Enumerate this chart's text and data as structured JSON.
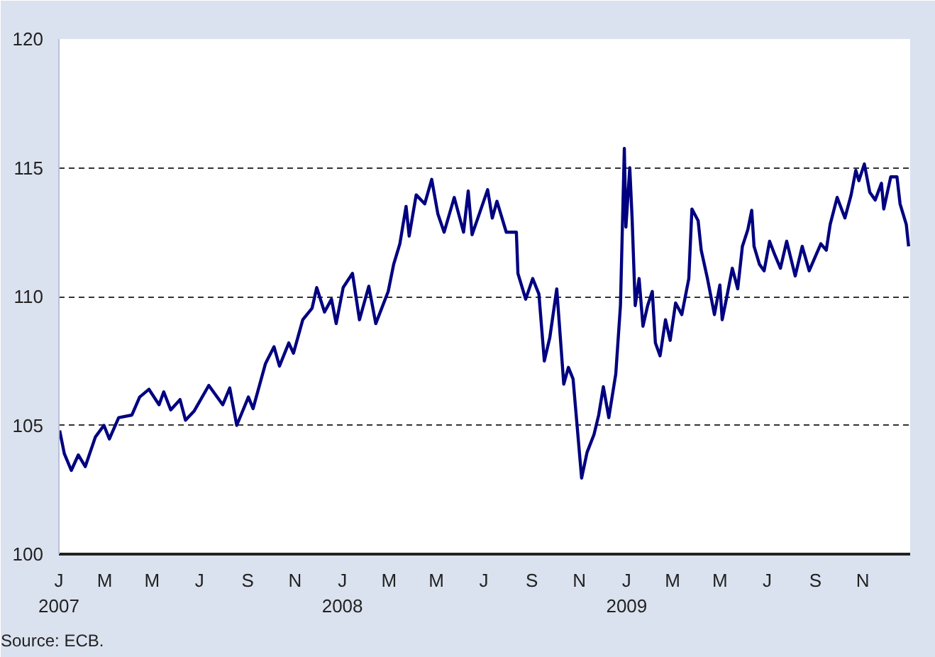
{
  "chart_data": {
    "type": "line",
    "color": "#000080",
    "line_style": "solid",
    "marker": "none",
    "grid": "y",
    "x": [
      "2007-01-02",
      "2007-01-08",
      "2007-01-17",
      "2007-01-26",
      "2007-02-04",
      "2007-02-17",
      "2007-02-28",
      "2007-03-07",
      "2007-03-19",
      "2007-04-05",
      "2007-04-15",
      "2007-04-27",
      "2007-05-10",
      "2007-05-16",
      "2007-05-25",
      "2007-06-06",
      "2007-06-13",
      "2007-06-24",
      "2007-07-13",
      "2007-07-31",
      "2007-08-09",
      "2007-08-18",
      "2007-09-02",
      "2007-09-08",
      "2007-09-24",
      "2007-10-05",
      "2007-10-12",
      "2007-10-24",
      "2007-10-30",
      "2007-11-11",
      "2007-11-23",
      "2007-11-29",
      "2007-12-09",
      "2007-12-18",
      "2007-12-24",
      "2008-01-02",
      "2008-01-14",
      "2008-01-23",
      "2008-02-04",
      "2008-02-13",
      "2008-02-29",
      "2008-03-07",
      "2008-03-15",
      "2008-03-23",
      "2008-03-27",
      "2008-04-05",
      "2008-04-16",
      "2008-04-25",
      "2008-05-03",
      "2008-05-11",
      "2008-05-24",
      "2008-06-05",
      "2008-06-11",
      "2008-06-16",
      "2008-07-06",
      "2008-07-12",
      "2008-07-18",
      "2008-07-30",
      "2008-08-12",
      "2008-08-14",
      "2008-08-24",
      "2008-09-02",
      "2008-09-10",
      "2008-09-17",
      "2008-09-24",
      "2008-10-03",
      "2008-10-12",
      "2008-10-18",
      "2008-10-24",
      "2008-11-04",
      "2008-11-11",
      "2008-11-20",
      "2008-11-26",
      "2008-12-02",
      "2008-12-09",
      "2008-12-18",
      "2008-12-24",
      "2008-12-29",
      "2008-12-31",
      "2009-01-05",
      "2009-01-08",
      "2009-01-12",
      "2009-01-17",
      "2009-01-22",
      "2009-01-28",
      "2009-02-03",
      "2009-02-07",
      "2009-02-13",
      "2009-02-20",
      "2009-02-26",
      "2009-03-05",
      "2009-03-13",
      "2009-03-22",
      "2009-03-26",
      "2009-04-03",
      "2009-04-07",
      "2009-04-15",
      "2009-04-24",
      "2009-05-01",
      "2009-05-04",
      "2009-05-10",
      "2009-05-17",
      "2009-05-24",
      "2009-05-30",
      "2009-06-06",
      "2009-06-11",
      "2009-06-14",
      "2009-06-21",
      "2009-06-27",
      "2009-07-04",
      "2009-07-11",
      "2009-07-18",
      "2009-07-26",
      "2009-08-06",
      "2009-08-15",
      "2009-08-24",
      "2009-09-08",
      "2009-09-15",
      "2009-09-20",
      "2009-09-29",
      "2009-10-09",
      "2009-10-17",
      "2009-10-23",
      "2009-10-27",
      "2009-11-03",
      "2009-11-10",
      "2009-11-17",
      "2009-11-25",
      "2009-11-28",
      "2009-12-07",
      "2009-12-15",
      "2009-12-19",
      "2009-12-27",
      "2009-12-30"
    ],
    "values": [
      104.8,
      103.9,
      103.25,
      103.85,
      103.4,
      104.55,
      105.0,
      104.47,
      105.3,
      105.4,
      106.1,
      106.4,
      105.8,
      106.3,
      105.6,
      106.0,
      105.2,
      105.55,
      106.55,
      105.8,
      106.45,
      105.0,
      106.1,
      105.65,
      107.4,
      108.05,
      107.3,
      108.2,
      107.8,
      109.1,
      109.55,
      110.35,
      109.4,
      109.9,
      108.95,
      110.35,
      110.9,
      109.1,
      110.4,
      108.95,
      110.2,
      111.25,
      112.05,
      113.5,
      112.35,
      113.95,
      113.6,
      114.55,
      113.2,
      112.5,
      113.85,
      112.5,
      114.1,
      112.4,
      114.15,
      113.05,
      113.7,
      112.5,
      112.5,
      110.9,
      109.9,
      110.7,
      110.1,
      107.5,
      108.4,
      110.3,
      106.6,
      107.25,
      106.8,
      102.95,
      103.95,
      104.65,
      105.4,
      106.5,
      105.3,
      107.0,
      109.65,
      115.75,
      112.7,
      115.0,
      113.05,
      109.65,
      110.7,
      108.85,
      109.65,
      110.2,
      108.2,
      107.7,
      109.1,
      108.3,
      109.75,
      109.3,
      110.7,
      113.4,
      112.95,
      111.8,
      110.7,
      109.3,
      110.45,
      109.1,
      110.0,
      111.1,
      110.3,
      111.95,
      112.6,
      113.35,
      111.95,
      111.25,
      111.0,
      112.15,
      111.6,
      111.1,
      112.15,
      110.8,
      111.95,
      111.0,
      112.05,
      111.8,
      112.8,
      113.85,
      113.05,
      113.95,
      114.9,
      114.5,
      115.15,
      114.05,
      113.75,
      114.4,
      113.4,
      114.65,
      114.65,
      113.6,
      112.8,
      111.95
    ],
    "xlim": [
      "2007-01-01",
      "2010-01-01"
    ],
    "xticks": [
      {
        "value": "2007-01-01",
        "label": "J\n2007"
      },
      {
        "value": "2007-03-01",
        "label": "M"
      },
      {
        "value": "2007-05-01",
        "label": "M"
      },
      {
        "value": "2007-07-01",
        "label": "J"
      },
      {
        "value": "2007-09-01",
        "label": "S"
      },
      {
        "value": "2007-11-01",
        "label": "N"
      },
      {
        "value": "2008-01-01",
        "label": "J\n2008"
      },
      {
        "value": "2008-03-01",
        "label": "M"
      },
      {
        "value": "2008-05-01",
        "label": "M"
      },
      {
        "value": "2008-07-01",
        "label": "J"
      },
      {
        "value": "2008-09-01",
        "label": "S"
      },
      {
        "value": "2008-11-01",
        "label": "N"
      },
      {
        "value": "2009-01-01",
        "label": "J\n2009"
      },
      {
        "value": "2009-03-01",
        "label": "M"
      },
      {
        "value": "2009-05-01",
        "label": "M"
      },
      {
        "value": "2009-07-01",
        "label": "J"
      },
      {
        "value": "2009-09-01",
        "label": "S"
      },
      {
        "value": "2009-11-01",
        "label": "N"
      }
    ],
    "ylim": [
      100,
      120
    ],
    "yticks": [
      100,
      105,
      110,
      115,
      120
    ],
    "annotations": [
      "Source: ECB."
    ]
  }
}
